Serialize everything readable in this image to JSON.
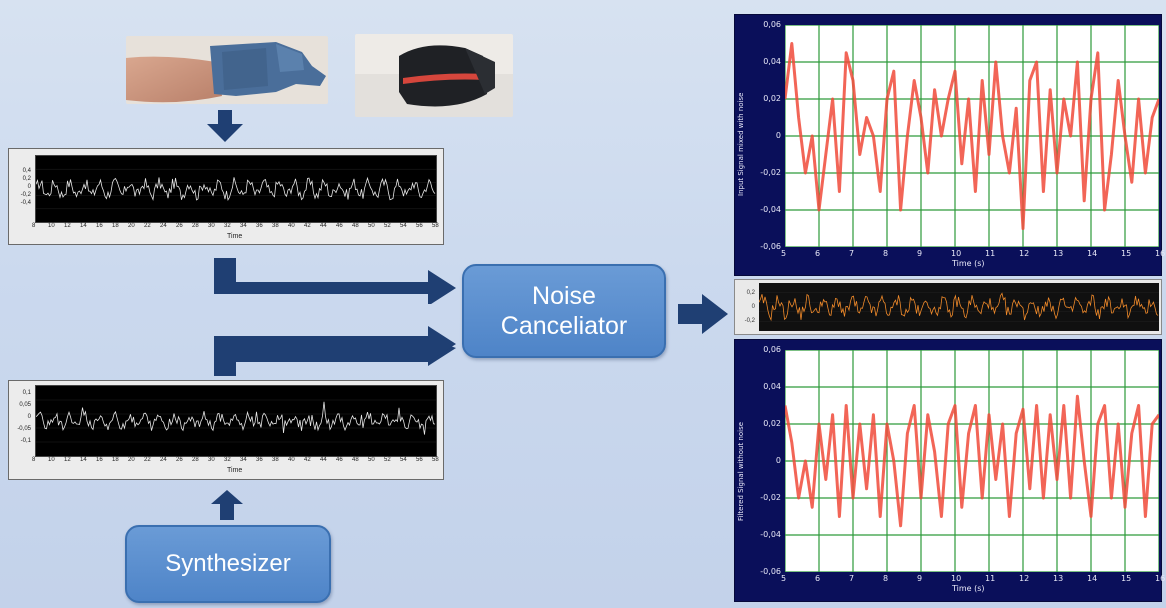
{
  "boxes": {
    "canceller": "Noise Canceliator",
    "canceller_line1": "Noise",
    "canceller_line2": "Canceliator",
    "synth": "Synthesizer"
  },
  "scope_top": {
    "yticks": [
      "0,4",
      "0,2",
      "0",
      "-0,2",
      "-0,4"
    ],
    "xticks": [
      "8",
      "10",
      "12",
      "14",
      "16",
      "18",
      "20",
      "22",
      "24",
      "26",
      "28",
      "30",
      "32",
      "34",
      "36",
      "38",
      "40",
      "42",
      "44",
      "46",
      "48",
      "50",
      "52",
      "54",
      "56",
      "58"
    ],
    "xlabel": "Time"
  },
  "scope_bottom": {
    "yticks": [
      "0,1",
      "0,05",
      "0",
      "-0,05",
      "-0,1"
    ],
    "xticks": [
      "8",
      "10",
      "12",
      "14",
      "16",
      "18",
      "20",
      "22",
      "24",
      "26",
      "28",
      "30",
      "32",
      "34",
      "36",
      "38",
      "40",
      "42",
      "44",
      "46",
      "48",
      "50",
      "52",
      "54",
      "56",
      "58"
    ],
    "xlabel": "Time"
  },
  "strip": {
    "yticks": [
      "0,2",
      "0",
      "-0,2"
    ]
  },
  "colors": {
    "signal": "#f04a3a",
    "grid": "#2d9a3a",
    "panel": "#0a0f5a",
    "box": "#5a8fd0",
    "arrow": "#1f3f73"
  },
  "chart_data": [
    {
      "type": "line",
      "title": "",
      "xlabel": "Time (s)",
      "ylabel": "Input Signal mixed with noise",
      "xlim": [
        5,
        16
      ],
      "ylim": [
        -0.06,
        0.06
      ],
      "xticks": [
        "5",
        "6",
        "7",
        "8",
        "9",
        "10",
        "11",
        "12",
        "13",
        "14",
        "15",
        "16"
      ],
      "yticks": [
        "0,06",
        "0,04",
        "0,02",
        "0",
        "-0,02",
        "-0,04",
        "-0,06"
      ],
      "grid": true,
      "series": [
        {
          "x": [
            5.0,
            5.2,
            5.4,
            5.6,
            5.8,
            6.0,
            6.2,
            6.4,
            6.6,
            6.8,
            7.0,
            7.2,
            7.4,
            7.6,
            7.8,
            8.0,
            8.2,
            8.4,
            8.6,
            8.8,
            9.0,
            9.2,
            9.4,
            9.6,
            9.8,
            10.0,
            10.2,
            10.4,
            10.6,
            10.8,
            11.0,
            11.2,
            11.4,
            11.6,
            11.8,
            12.0,
            12.2,
            12.4,
            12.6,
            12.8,
            13.0,
            13.2,
            13.4,
            13.6,
            13.8,
            14.0,
            14.2,
            14.4,
            14.6,
            14.8,
            15.0,
            15.2,
            15.4,
            15.6,
            15.8,
            16.0
          ],
          "y": [
            0.02,
            0.05,
            0.01,
            -0.02,
            0.0,
            -0.04,
            -0.01,
            0.02,
            -0.03,
            0.045,
            0.03,
            -0.01,
            0.01,
            0.0,
            -0.03,
            0.02,
            0.035,
            -0.04,
            0.0,
            0.03,
            0.01,
            -0.02,
            0.025,
            0.0,
            0.02,
            0.035,
            -0.015,
            0.02,
            -0.03,
            0.03,
            -0.01,
            0.04,
            0.0,
            -0.02,
            0.015,
            -0.05,
            0.03,
            0.04,
            -0.03,
            0.025,
            -0.02,
            0.02,
            0.0,
            0.04,
            -0.035,
            0.02,
            0.045,
            -0.04,
            -0.01,
            0.03,
            0.0,
            -0.025,
            0.02,
            -0.02,
            0.01,
            0.02
          ]
        }
      ]
    },
    {
      "type": "line",
      "title": "",
      "xlabel": "Time (s)",
      "ylabel": "Filtered Signal without noise",
      "xlim": [
        5,
        16
      ],
      "ylim": [
        -0.06,
        0.06
      ],
      "xticks": [
        "5",
        "6",
        "7",
        "8",
        "9",
        "10",
        "11",
        "12",
        "13",
        "14",
        "15",
        "16"
      ],
      "yticks": [
        "0,06",
        "0,04",
        "0,02",
        "0",
        "-0,02",
        "-0,04",
        "-0,06"
      ],
      "grid": true,
      "series": [
        {
          "x": [
            5.0,
            5.2,
            5.4,
            5.6,
            5.8,
            6.0,
            6.2,
            6.4,
            6.6,
            6.8,
            7.0,
            7.2,
            7.4,
            7.6,
            7.8,
            8.0,
            8.2,
            8.4,
            8.6,
            8.8,
            9.0,
            9.2,
            9.4,
            9.6,
            9.8,
            10.0,
            10.2,
            10.4,
            10.6,
            10.8,
            11.0,
            11.2,
            11.4,
            11.6,
            11.8,
            12.0,
            12.2,
            12.4,
            12.6,
            12.8,
            13.0,
            13.2,
            13.4,
            13.6,
            13.8,
            14.0,
            14.2,
            14.4,
            14.6,
            14.8,
            15.0,
            15.2,
            15.4,
            15.6,
            15.8,
            16.0
          ],
          "y": [
            0.03,
            0.01,
            -0.02,
            0.0,
            -0.025,
            0.02,
            -0.01,
            0.025,
            -0.03,
            0.03,
            -0.02,
            0.02,
            -0.015,
            0.025,
            -0.03,
            0.02,
            0.0,
            -0.035,
            0.015,
            0.03,
            -0.02,
            0.025,
            0.005,
            -0.03,
            0.02,
            0.03,
            -0.025,
            0.015,
            0.03,
            -0.02,
            0.025,
            -0.01,
            0.02,
            -0.03,
            0.015,
            0.028,
            -0.015,
            0.03,
            -0.02,
            0.025,
            -0.01,
            0.03,
            -0.02,
            0.035,
            0.0,
            -0.03,
            0.02,
            0.03,
            -0.02,
            0.02,
            -0.025,
            0.015,
            0.03,
            -0.03,
            0.02,
            0.025
          ]
        }
      ]
    }
  ]
}
